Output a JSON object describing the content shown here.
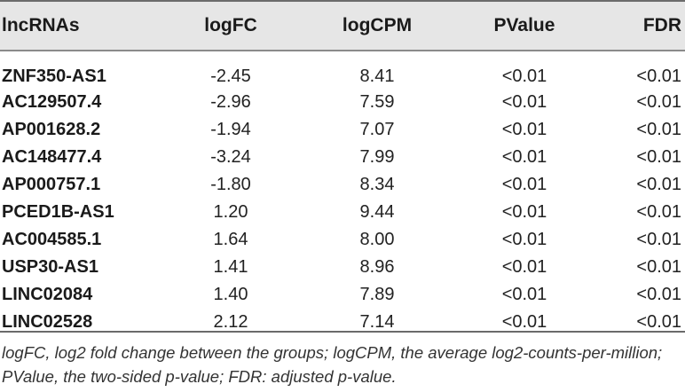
{
  "table": {
    "columns": [
      "lncRNAs",
      "logFC",
      "logCPM",
      "PValue",
      "FDR"
    ],
    "rows": [
      {
        "name": "ZNF350-AS1",
        "logFC": "-2.45",
        "logCPM": "8.41",
        "pvalue": "<0.01",
        "fdr": "<0.01"
      },
      {
        "name": "AC129507.4",
        "logFC": "-2.96",
        "logCPM": "7.59",
        "pvalue": "<0.01",
        "fdr": "<0.01"
      },
      {
        "name": "AP001628.2",
        "logFC": "-1.94",
        "logCPM": "7.07",
        "pvalue": "<0.01",
        "fdr": "<0.01"
      },
      {
        "name": "AC148477.4",
        "logFC": "-3.24",
        "logCPM": "7.99",
        "pvalue": "<0.01",
        "fdr": "<0.01"
      },
      {
        "name": "AP000757.1",
        "logFC": "-1.80",
        "logCPM": "8.34",
        "pvalue": "<0.01",
        "fdr": "<0.01"
      },
      {
        "name": "PCED1B-AS1",
        "logFC": "1.20",
        "logCPM": "9.44",
        "pvalue": "<0.01",
        "fdr": "<0.01"
      },
      {
        "name": "AC004585.1",
        "logFC": "1.64",
        "logCPM": "8.00",
        "pvalue": "<0.01",
        "fdr": "<0.01"
      },
      {
        "name": "USP30-AS1",
        "logFC": "1.41",
        "logCPM": "8.96",
        "pvalue": "<0.01",
        "fdr": "<0.01"
      },
      {
        "name": "LINC02084",
        "logFC": "1.40",
        "logCPM": "7.89",
        "pvalue": "<0.01",
        "fdr": "<0.01"
      },
      {
        "name": "LINC02528",
        "logFC": "2.12",
        "logCPM": "7.14",
        "pvalue": "<0.01",
        "fdr": "<0.01"
      }
    ]
  },
  "footnote": "logFC, log2 fold change between the groups; logCPM, the average log2-counts-per-million; PValue, the two-sided p-value; FDR: adjusted p-value."
}
